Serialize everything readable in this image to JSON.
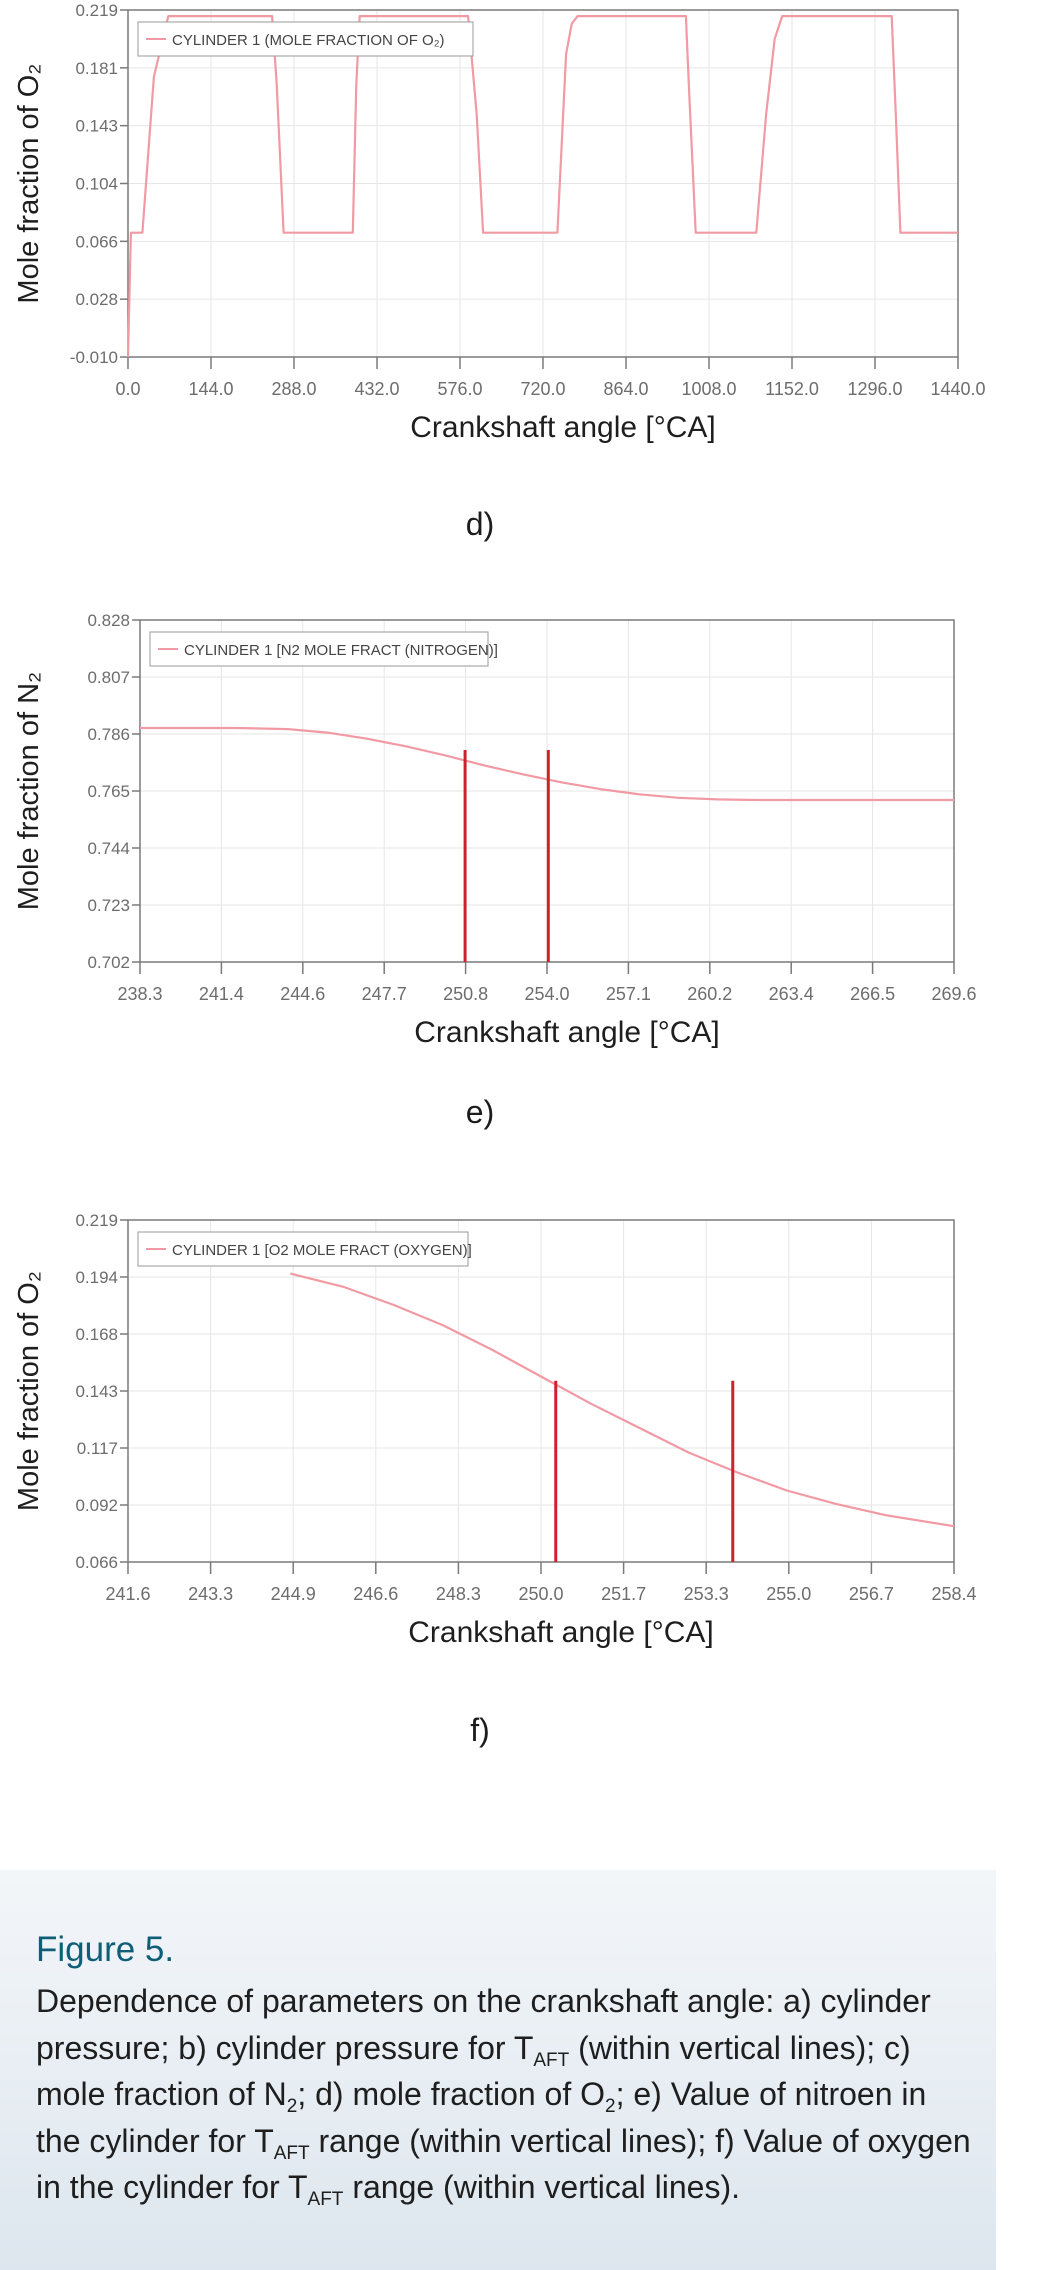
{
  "colors": {
    "series": "#f19aa3",
    "marker": "#d0202e",
    "axis": "#7a7a7a",
    "grid": "#e6e6e6",
    "caption_title": "#0f5e78"
  },
  "panels": {
    "d": {
      "label": "d)"
    },
    "e": {
      "label": "e)"
    },
    "f": {
      "label": "f)"
    }
  },
  "caption": {
    "title": "Figure 5.",
    "text_html": "Dependence of parameters on the crankshaft angle: a) cylinder pressure; b) cylinder pressure for T<sub>AFT</sub> (within vertical lines); c) mole fraction of N<sub>2</sub>; d) mole fraction of O<sub>2</sub>; e) Value of nitroen in the cylinder for T<sub>AFT</sub> range (within vertical lines); f) Value of oxygen in the cylinder for T<sub>AFT</sub> range (within vertical lines)."
  },
  "chart_data": [
    {
      "id": "d",
      "type": "line",
      "title": "",
      "xlabel": "Crankshaft angle [°CA]",
      "ylabel": "Mole fraction of O₂",
      "legend": "CYLINDER 1 (MOLE FRACTION OF O₂)",
      "legend_position": "top-left",
      "x_ticks": [
        "0.0",
        "144.0",
        "288.0",
        "432.0",
        "576.0",
        "720.0",
        "864.0",
        "1008.0",
        "1152.0",
        "1296.0",
        "1440.0"
      ],
      "y_ticks": [
        "0.219",
        "0.181",
        "0.143",
        "0.104",
        "0.066",
        "0.028",
        "-0.010"
      ],
      "xlim": [
        0,
        1440
      ],
      "ylim": [
        -0.01,
        0.219
      ],
      "vlines": [],
      "series": [
        {
          "name": "CYLINDER 1 (MOLE FRACTION OF O₂)",
          "x": [
            0,
            5,
            25,
            45,
            70,
            250,
            258,
            270,
            390,
            396,
            402,
            590,
            605,
            616,
            720,
            745,
            760,
            770,
            780,
            968,
            973,
            985,
            1090,
            1107,
            1122,
            1135,
            1325,
            1332,
            1340,
            1440
          ],
          "y": [
            -0.01,
            0.072,
            0.072,
            0.175,
            0.215,
            0.215,
            0.17,
            0.072,
            0.072,
            0.17,
            0.215,
            0.215,
            0.15,
            0.072,
            0.072,
            0.072,
            0.19,
            0.21,
            0.215,
            0.215,
            0.17,
            0.072,
            0.072,
            0.15,
            0.2,
            0.215,
            0.215,
            0.15,
            0.072,
            0.072
          ]
        }
      ]
    },
    {
      "id": "e",
      "type": "line",
      "title": "",
      "xlabel": "Crankshaft angle [°CA]",
      "ylabel": "Mole fraction of N₂",
      "legend": "CYLINDER 1 [N2 MOLE FRACT (NITROGEN)]",
      "legend_position": "top-left",
      "x_ticks": [
        "238.3",
        "241.4",
        "244.6",
        "247.7",
        "250.8",
        "254.0",
        "257.1",
        "260.2",
        "263.4",
        "266.5",
        "269.6"
      ],
      "y_ticks": [
        "0.828",
        "0.807",
        "0.786",
        "0.765",
        "0.744",
        "0.723",
        "0.702"
      ],
      "xlim": [
        238.3,
        269.6
      ],
      "ylim": [
        0.702,
        0.828
      ],
      "vlines": [
        250.8,
        254.0
      ],
      "series": [
        {
          "name": "CYLINDER 1 [N2 MOLE FRACT (NITROGEN)]",
          "x": [
            238.3,
            242.0,
            244.0,
            245.5,
            247.0,
            248.5,
            250.0,
            251.5,
            253.0,
            254.5,
            256.0,
            257.5,
            259.0,
            260.5,
            262.0,
            265.0,
            269.6
          ],
          "y": [
            0.7882,
            0.7882,
            0.7878,
            0.7865,
            0.7843,
            0.7815,
            0.7782,
            0.7745,
            0.7712,
            0.7682,
            0.7657,
            0.7638,
            0.7625,
            0.7619,
            0.7617,
            0.7617,
            0.7617
          ]
        }
      ]
    },
    {
      "id": "f",
      "type": "line",
      "title": "",
      "xlabel": "Crankshaft angle [°CA]",
      "ylabel": "Mole fraction of O₂",
      "legend": "CYLINDER 1 [O2 MOLE FRACT (OXYGEN)]",
      "legend_position": "top-left",
      "x_ticks": [
        "241.6",
        "243.3",
        "244.9",
        "246.6",
        "248.3",
        "250.0",
        "251.7",
        "253.3",
        "255.0",
        "256.7",
        "258.4"
      ],
      "y_ticks": [
        "0.219",
        "0.194",
        "0.168",
        "0.143",
        "0.117",
        "0.092",
        "0.066"
      ],
      "xlim": [
        241.6,
        258.4
      ],
      "ylim": [
        0.066,
        0.219
      ],
      "vlines": [
        250.3,
        253.9
      ],
      "series": [
        {
          "name": "CYLINDER 1 [O2 MOLE FRACT (OXYGEN)]",
          "x": [
            244.9,
            246.0,
            247.0,
            248.0,
            249.0,
            250.0,
            251.0,
            252.0,
            253.0,
            254.0,
            255.0,
            256.0,
            257.0,
            258.4
          ],
          "y": [
            0.195,
            0.189,
            0.181,
            0.172,
            0.161,
            0.149,
            0.137,
            0.126,
            0.115,
            0.106,
            0.098,
            0.092,
            0.087,
            0.082
          ]
        }
      ]
    }
  ]
}
